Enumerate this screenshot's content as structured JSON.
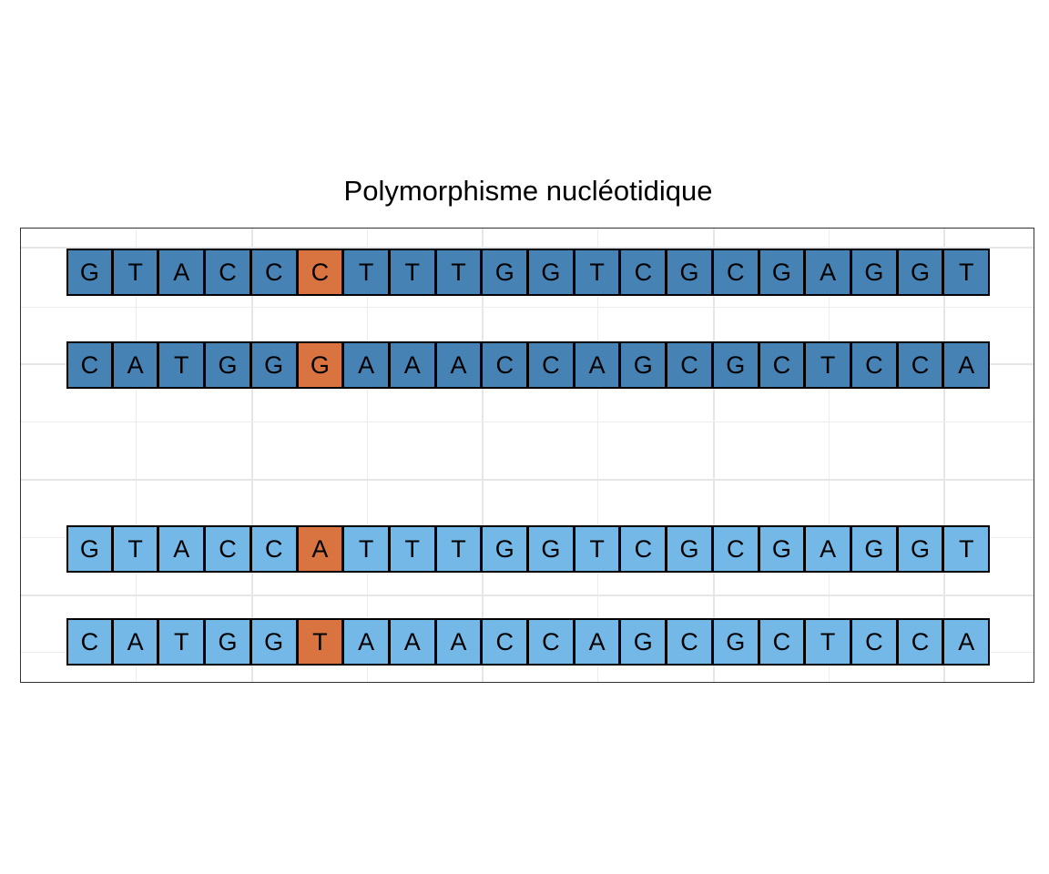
{
  "title": "Polymorphisme nucléotidique",
  "colors": {
    "dark_strand": "#4682b4",
    "light_strand": "#74b8e8",
    "variant": "#d97440"
  },
  "strands": [
    {
      "id": "allele1-top",
      "tone": "dark",
      "bases": [
        "G",
        "T",
        "A",
        "C",
        "C",
        "C",
        "T",
        "T",
        "T",
        "G",
        "G",
        "T",
        "C",
        "G",
        "C",
        "G",
        "A",
        "G",
        "G",
        "T"
      ],
      "variant_index": 5
    },
    {
      "id": "allele1-bottom",
      "tone": "dark",
      "bases": [
        "C",
        "A",
        "T",
        "G",
        "G",
        "G",
        "A",
        "A",
        "A",
        "C",
        "C",
        "A",
        "G",
        "C",
        "G",
        "C",
        "T",
        "C",
        "C",
        "A"
      ],
      "variant_index": 5
    },
    {
      "id": "allele2-top",
      "tone": "light",
      "bases": [
        "G",
        "T",
        "A",
        "C",
        "C",
        "A",
        "T",
        "T",
        "T",
        "G",
        "G",
        "T",
        "C",
        "G",
        "C",
        "G",
        "A",
        "G",
        "G",
        "T"
      ],
      "variant_index": 5
    },
    {
      "id": "allele2-bottom",
      "tone": "light",
      "bases": [
        "C",
        "A",
        "T",
        "G",
        "G",
        "T",
        "A",
        "A",
        "A",
        "C",
        "C",
        "A",
        "G",
        "C",
        "G",
        "C",
        "T",
        "C",
        "C",
        "A"
      ],
      "variant_index": 5
    }
  ]
}
